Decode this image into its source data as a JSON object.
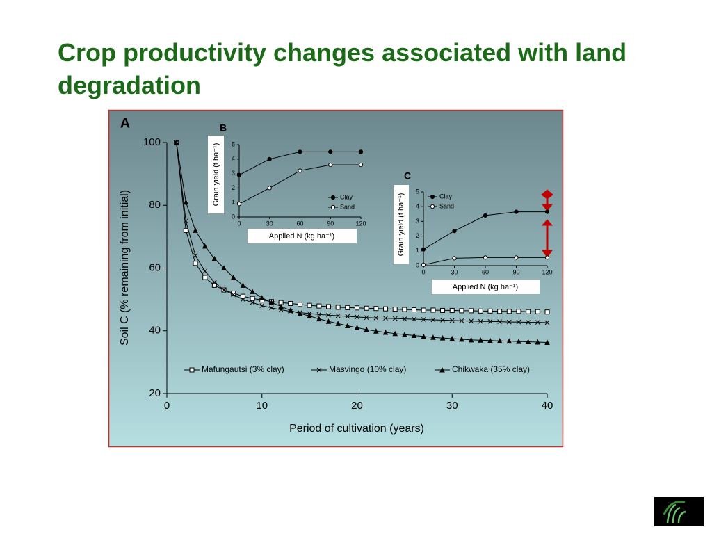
{
  "title": "Crop productivity changes associated with land degradation",
  "chart_data": [
    {
      "type": "line",
      "panel_label": "A",
      "x_label": "Period of cultivation (years)",
      "y_label": "Soil C (% remaining from initial)",
      "x": [
        1,
        2,
        3,
        4,
        5,
        6,
        7,
        8,
        9,
        10,
        11,
        12,
        13,
        14,
        15,
        16,
        17,
        18,
        19,
        20,
        21,
        22,
        23,
        24,
        25,
        26,
        27,
        28,
        29,
        30,
        31,
        32,
        33,
        34,
        35,
        36,
        37,
        38,
        39,
        40
      ],
      "xlim": [
        0,
        40
      ],
      "xticks": [
        0,
        10,
        20,
        30,
        40
      ],
      "ylim": [
        20,
        100
      ],
      "yticks": [
        20,
        40,
        60,
        80,
        100
      ],
      "legend": "bottom",
      "series": [
        {
          "name": "Mafungautsi (3% clay)",
          "color": "#000000",
          "marker": "open-square",
          "values": [
            100,
            72,
            61.5,
            57,
            54.5,
            53,
            52,
            51,
            50.3,
            49.8,
            49.3,
            49,
            48.7,
            48.4,
            48.1,
            47.9,
            47.7,
            47.5,
            47.4,
            47.3,
            47.2,
            47.1,
            47,
            46.9,
            46.8,
            46.7,
            46.6,
            46.6,
            46.5,
            46.5,
            46.4,
            46.4,
            46.3,
            46.3,
            46.2,
            46.2,
            46.2,
            46.1,
            46.1,
            46
          ]
        },
        {
          "name": "Masvingo (10% clay)",
          "color": "#000000",
          "marker": "cross",
          "values": [
            100,
            75,
            64,
            59,
            55.5,
            53,
            51.5,
            50,
            49,
            48,
            47.3,
            46.7,
            46.2,
            45.8,
            45.5,
            45.2,
            45,
            44.8,
            44.6,
            44.4,
            44.2,
            44.1,
            44,
            43.9,
            43.8,
            43.7,
            43.6,
            43.5,
            43.4,
            43.3,
            43.2,
            43.1,
            43,
            43,
            42.9,
            42.8,
            42.8,
            42.7,
            42.7,
            42.6
          ]
        },
        {
          "name": "Chikwaka (35% clay)",
          "color": "#000000",
          "marker": "triangle",
          "values": [
            100,
            81,
            72,
            67,
            63,
            60,
            57,
            54.5,
            52.5,
            50.5,
            49,
            47.8,
            46.5,
            45.5,
            44.7,
            43.8,
            43,
            42.3,
            41.6,
            41,
            40.4,
            39.9,
            39.5,
            39.1,
            38.8,
            38.5,
            38.2,
            37.9,
            37.7,
            37.5,
            37.3,
            37.1,
            37,
            36.9,
            36.8,
            36.7,
            36.6,
            36.5,
            36.4,
            36.3
          ]
        }
      ]
    },
    {
      "type": "line",
      "panel_label": "B",
      "x_label": "Applied N (kg ha⁻¹)",
      "y_label": "Grain yield (t ha⁻¹)",
      "x": [
        0,
        30,
        60,
        90,
        120
      ],
      "xlim": [
        0,
        120
      ],
      "xticks": [
        0,
        30,
        60,
        90,
        120
      ],
      "ylim": [
        0,
        5
      ],
      "yticks": [
        0,
        1,
        2,
        3,
        4,
        5
      ],
      "legend": "right",
      "series": [
        {
          "name": "Clay",
          "color": "#000000",
          "marker": "circle",
          "values": [
            2.9,
            4.0,
            4.5,
            4.5,
            4.5
          ]
        },
        {
          "name": "Sand",
          "color": "#000000",
          "marker": "open-circle",
          "values": [
            0.9,
            2.0,
            3.2,
            3.6,
            3.6
          ]
        }
      ]
    },
    {
      "type": "line",
      "panel_label": "C",
      "x_label": "Applied N (kg ha⁻¹)",
      "y_label": "Grain yield (t ha⁻¹)",
      "x": [
        0,
        30,
        60,
        90,
        120
      ],
      "xlim": [
        0,
        120
      ],
      "xticks": [
        0,
        30,
        60,
        90,
        120
      ],
      "ylim": [
        0,
        5
      ],
      "yticks": [
        0,
        1,
        2,
        3,
        4,
        5
      ],
      "legend": "top-left",
      "series": [
        {
          "name": "Clay",
          "color": "#000000",
          "marker": "circle",
          "values": [
            1.1,
            2.35,
            3.4,
            3.65,
            3.65
          ]
        },
        {
          "name": "Sand",
          "color": "#000000",
          "marker": "open-circle",
          "values": [
            0.05,
            0.5,
            0.55,
            0.55,
            0.55
          ]
        }
      ]
    }
  ]
}
